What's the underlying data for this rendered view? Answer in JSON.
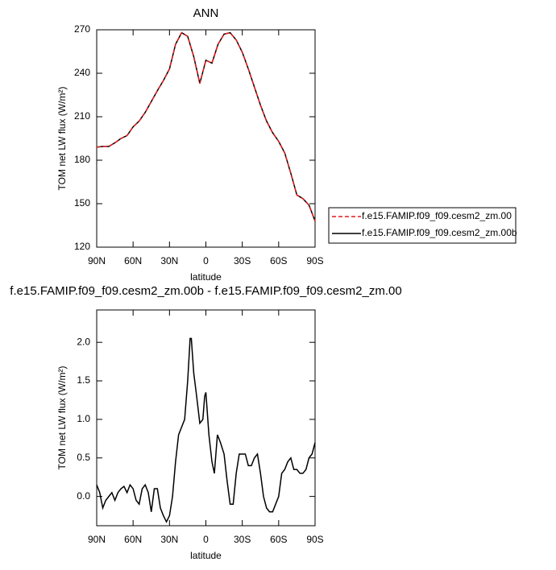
{
  "chart_data": [
    {
      "type": "line",
      "title": "ANN",
      "xlabel": "latitude",
      "ylabel": "TOM net LW flux (W/m²)",
      "x": [
        90,
        85,
        80,
        75,
        70,
        65,
        60,
        55,
        50,
        45,
        40,
        35,
        30,
        25,
        20,
        15,
        10,
        5,
        0,
        -5,
        -10,
        -15,
        -20,
        -25,
        -30,
        -35,
        -40,
        -45,
        -50,
        -55,
        -60,
        -65,
        -70,
        -75,
        -80,
        -85,
        -90
      ],
      "series": [
        {
          "name": "f.e15.FAMIP.f09_f09.cesm2_zm.00",
          "color": "#e41a1c",
          "dash": true,
          "values": [
            189,
            189.5,
            189.5,
            192,
            195,
            197,
            203,
            207,
            213,
            220.5,
            228,
            235,
            243,
            260,
            268,
            265.5,
            251.5,
            233,
            249,
            247,
            260,
            267,
            268,
            263,
            254.5,
            243,
            230.5,
            218,
            207,
            199,
            193,
            185,
            171,
            156,
            153.5,
            149,
            138
          ]
        },
        {
          "name": "f.e15.FAMIP.f09_f09.cesm2_zm.00b",
          "color": "#000000",
          "dash": false,
          "values": [
            189,
            189.5,
            189.5,
            192,
            195,
            197,
            203,
            207,
            213,
            220.5,
            228,
            235,
            243,
            260,
            268,
            265.5,
            251.5,
            233,
            249,
            247,
            260,
            267,
            268,
            263,
            254.5,
            243,
            230.5,
            218,
            207,
            199,
            193,
            185,
            171,
            156,
            153.5,
            149,
            138
          ]
        }
      ],
      "xlim": [
        90,
        -90
      ],
      "xticks": [
        {
          "value": 90,
          "label": "90N"
        },
        {
          "value": 60,
          "label": "60N"
        },
        {
          "value": 30,
          "label": "30N"
        },
        0,
        {
          "value": -30,
          "label": "30S"
        },
        {
          "value": -60,
          "label": "60S"
        },
        {
          "value": -90,
          "label": "90S"
        }
      ],
      "ylim": [
        120,
        270
      ],
      "yticks": [
        120,
        150,
        180,
        210,
        240,
        270
      ],
      "legend": "outside-right"
    },
    {
      "type": "line",
      "title": "f.e15.FAMIP.f09_f09.cesm2_zm.00b - f.e15.FAMIP.f09_f09.cesm2_zm.00",
      "xlabel": "latitude",
      "ylabel": "TOM net LW flux (W/m²)",
      "x": [
        90,
        87.5,
        85,
        82.5,
        80,
        77.5,
        75,
        72.5,
        70,
        67.5,
        65,
        62.5,
        60,
        57.5,
        55,
        52.5,
        50,
        47.5,
        45,
        42.5,
        40,
        37.5,
        35,
        32.5,
        30,
        27.5,
        25,
        22.5,
        20,
        17.5,
        15,
        13,
        12,
        10,
        8,
        5,
        2.5,
        1,
        0,
        -2.5,
        -5,
        -7,
        -9.5,
        -12,
        -15,
        -17.5,
        -20,
        -22.5,
        -25,
        -27.5,
        -30,
        -32.5,
        -35,
        -37.5,
        -40,
        -42.5,
        -45,
        -47.5,
        -50,
        -52.5,
        -55,
        -57.5,
        -60,
        -62.5,
        -65,
        -67.5,
        -70,
        -72.5,
        -75,
        -77.5,
        -80,
        -82.5,
        -85,
        -87.5,
        -90
      ],
      "series": [
        {
          "color": "#000000",
          "dash": false,
          "values": [
            0.15,
            0.05,
            -0.15,
            -0.05,
            0.0,
            0.05,
            -0.05,
            0.05,
            0.1,
            0.13,
            0.05,
            0.15,
            0.1,
            -0.05,
            -0.1,
            0.1,
            0.15,
            0.05,
            -0.2,
            0.1,
            0.1,
            -0.15,
            -0.25,
            -0.33,
            -0.25,
            0.0,
            0.45,
            0.8,
            0.9,
            1.0,
            1.5,
            2.05,
            2.05,
            1.6,
            1.35,
            0.95,
            1.0,
            1.3,
            1.35,
            0.8,
            0.45,
            0.3,
            0.8,
            0.7,
            0.55,
            0.2,
            -0.1,
            -0.1,
            0.3,
            0.55,
            0.55,
            0.55,
            0.4,
            0.4,
            0.5,
            0.55,
            0.3,
            0.0,
            -0.15,
            -0.2,
            -0.2,
            -0.1,
            0.0,
            0.3,
            0.35,
            0.45,
            0.5,
            0.35,
            0.35,
            0.3,
            0.3,
            0.35,
            0.5,
            0.55,
            0.7
          ]
        }
      ],
      "xlim": [
        90,
        -90
      ],
      "xticks": [
        {
          "value": 90,
          "label": "90N"
        },
        {
          "value": 60,
          "label": "60N"
        },
        {
          "value": 30,
          "label": "30N"
        },
        0,
        {
          "value": -30,
          "label": "30S"
        },
        {
          "value": -60,
          "label": "60S"
        },
        {
          "value": -90,
          "label": "90S"
        }
      ],
      "ylim": [
        -0.38,
        2.42
      ],
      "yticks": [
        {
          "value": 0,
          "label": "0.0"
        },
        {
          "value": 0.5,
          "label": "0.5"
        },
        {
          "value": 1,
          "label": "1.0"
        },
        {
          "value": 1.5,
          "label": "1.5"
        },
        {
          "value": 2,
          "label": "2.0"
        }
      ]
    }
  ]
}
